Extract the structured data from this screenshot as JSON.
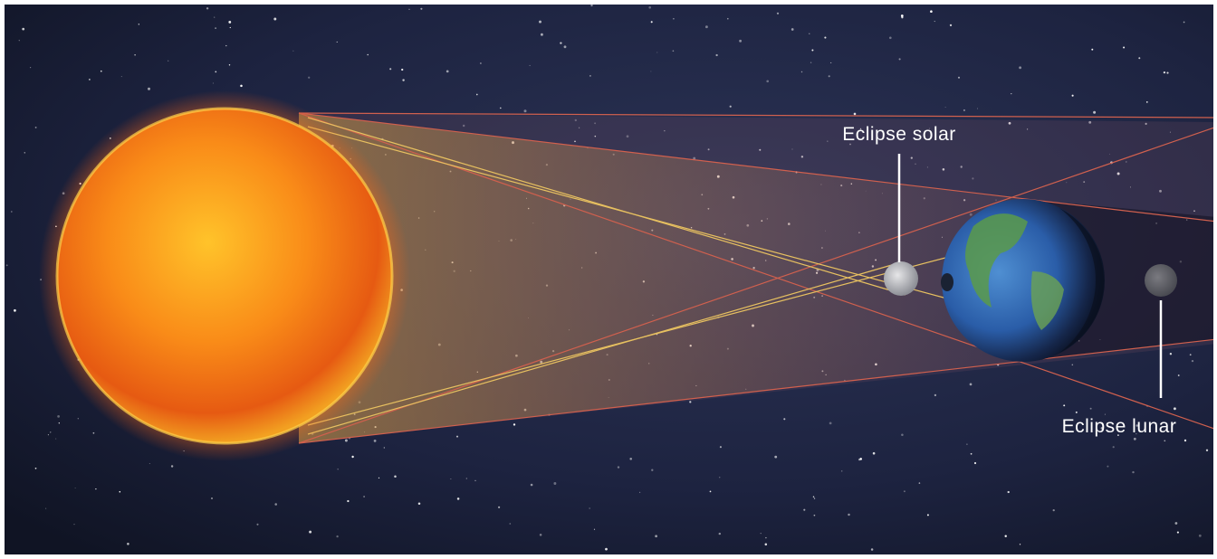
{
  "labels": {
    "solar_eclipse": "Eclipse solar",
    "lunar_eclipse": "Eclipse lunar"
  }
}
